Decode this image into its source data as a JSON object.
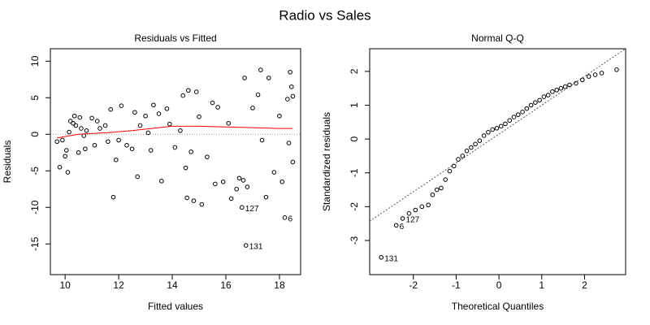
{
  "title": "Radio vs Sales",
  "chart_data": [
    {
      "type": "scatter",
      "title": "Residuals vs Fitted",
      "xlabel": "Fitted values",
      "ylabel": "Residuals",
      "xlim": [
        9.45,
        18.79
      ],
      "ylim": [
        -19.2,
        11.7
      ],
      "xticks": [
        10,
        12,
        14,
        16,
        18
      ],
      "yticks": [
        -15,
        -10,
        -5,
        0,
        5,
        10
      ],
      "hline": 0,
      "color": "#000000",
      "x": [
        9.7,
        9.8,
        9.9,
        10.0,
        10.05,
        10.1,
        10.15,
        10.2,
        10.3,
        10.35,
        10.4,
        10.5,
        10.55,
        10.6,
        10.7,
        10.75,
        10.8,
        11.0,
        11.1,
        11.2,
        11.3,
        11.5,
        11.6,
        11.7,
        11.8,
        11.9,
        12.0,
        12.1,
        12.3,
        12.5,
        12.6,
        12.7,
        12.8,
        13.0,
        13.1,
        13.2,
        13.3,
        13.5,
        13.6,
        13.8,
        13.9,
        14.1,
        14.3,
        14.4,
        14.5,
        14.55,
        14.6,
        14.7,
        14.8,
        14.9,
        15.0,
        15.1,
        15.3,
        15.5,
        15.6,
        15.7,
        15.9,
        16.1,
        16.2,
        16.4,
        16.5,
        16.6,
        16.65,
        16.7,
        16.75,
        16.8,
        17.0,
        17.2,
        17.3,
        17.35,
        17.5,
        17.6,
        17.8,
        18.0,
        18.1,
        18.2,
        18.3,
        18.35,
        18.4,
        18.45,
        18.5,
        18.5
      ],
      "y": [
        -1,
        -4.5,
        -0.8,
        -3,
        -2.2,
        -5.2,
        0.3,
        1.8,
        1.5,
        2.5,
        1.2,
        -2.5,
        2.3,
        0.8,
        -0.2,
        -2,
        0.5,
        2.2,
        -1.5,
        1.8,
        0.8,
        1.2,
        -1.0,
        3.4,
        -8.6,
        -3.5,
        -0.8,
        3.9,
        -1.5,
        -2,
        3.0,
        -5.8,
        1.2,
        2.5,
        0.2,
        -2.2,
        4.0,
        2.8,
        -6.4,
        3.5,
        1.4,
        -1.8,
        0.5,
        5.3,
        -4.6,
        -8.7,
        6.0,
        -2.4,
        -9.1,
        5.8,
        2.4,
        -9.6,
        -3.1,
        4.3,
        -6.8,
        3.7,
        -6.5,
        1.5,
        -8.8,
        -7.5,
        -6,
        -10,
        -6.3,
        7.7,
        -15.2,
        -7.2,
        3.6,
        5.4,
        8.8,
        -0.8,
        -8.6,
        7.7,
        -5.2,
        2.5,
        -6.5,
        -11.4,
        4.8,
        -1.2,
        8.5,
        6.5,
        5.2,
        -3.8
      ],
      "smooth": {
        "color": "#ff0000",
        "x": [
          9.7,
          10.5,
          11.5,
          12.5,
          13.5,
          14.0,
          15.0,
          16.0,
          17.0,
          18.0,
          18.5
        ],
        "y": [
          -0.5,
          0.0,
          0.2,
          0.5,
          0.9,
          1.1,
          1.1,
          1.0,
          0.9,
          0.8,
          0.8
        ]
      },
      "annotations": [
        {
          "text": "127",
          "x": 16.6,
          "y": -10
        },
        {
          "text": "131",
          "x": 16.75,
          "y": -15.2
        },
        {
          "text": "6",
          "x": 18.2,
          "y": -11.4
        }
      ]
    },
    {
      "type": "scatter",
      "title": "Normal Q-Q",
      "xlabel": "Theoretical Quantiles",
      "ylabel": "Standardized residuals",
      "xlim": [
        -3.02,
        2.96
      ],
      "ylim": [
        -4.01,
        2.67
      ],
      "xticks": [
        -2,
        -1,
        0,
        1,
        2
      ],
      "yticks": [
        -3,
        -2,
        -1,
        0,
        1,
        2
      ],
      "color": "#000000",
      "x": [
        -2.75,
        -2.4,
        -2.25,
        -2.1,
        -1.95,
        -1.8,
        -1.65,
        -1.55,
        -1.45,
        -1.35,
        -1.25,
        -1.15,
        -1.05,
        -0.95,
        -0.85,
        -0.75,
        -0.65,
        -0.55,
        -0.45,
        -0.35,
        -0.25,
        -0.15,
        -0.05,
        0.05,
        0.15,
        0.25,
        0.35,
        0.45,
        0.55,
        0.65,
        0.75,
        0.85,
        0.95,
        1.05,
        1.15,
        1.25,
        1.35,
        1.45,
        1.55,
        1.65,
        1.8,
        1.95,
        2.1,
        2.25,
        2.4,
        2.75
      ],
      "y": [
        -3.5,
        -2.55,
        -2.35,
        -2.2,
        -2.1,
        -2.0,
        -1.95,
        -1.65,
        -1.5,
        -1.45,
        -1.2,
        -0.95,
        -0.8,
        -0.6,
        -0.5,
        -0.35,
        -0.25,
        -0.15,
        -0.05,
        0.1,
        0.2,
        0.28,
        0.32,
        0.38,
        0.45,
        0.55,
        0.65,
        0.72,
        0.8,
        0.9,
        1.0,
        1.08,
        1.15,
        1.25,
        1.3,
        1.4,
        1.45,
        1.5,
        1.55,
        1.6,
        1.65,
        1.75,
        1.85,
        1.9,
        1.95,
        2.05
      ],
      "reference_line": {
        "color": "#555555",
        "x": [
          -3.02,
          2.96
        ],
        "y": [
          -2.43,
          2.67
        ]
      },
      "annotations": [
        {
          "text": "131",
          "x": -2.75,
          "y": -3.5
        },
        {
          "text": "6",
          "x": -2.4,
          "y": -2.55
        },
        {
          "text": "127",
          "x": -2.25,
          "y": -2.35
        }
      ]
    }
  ]
}
